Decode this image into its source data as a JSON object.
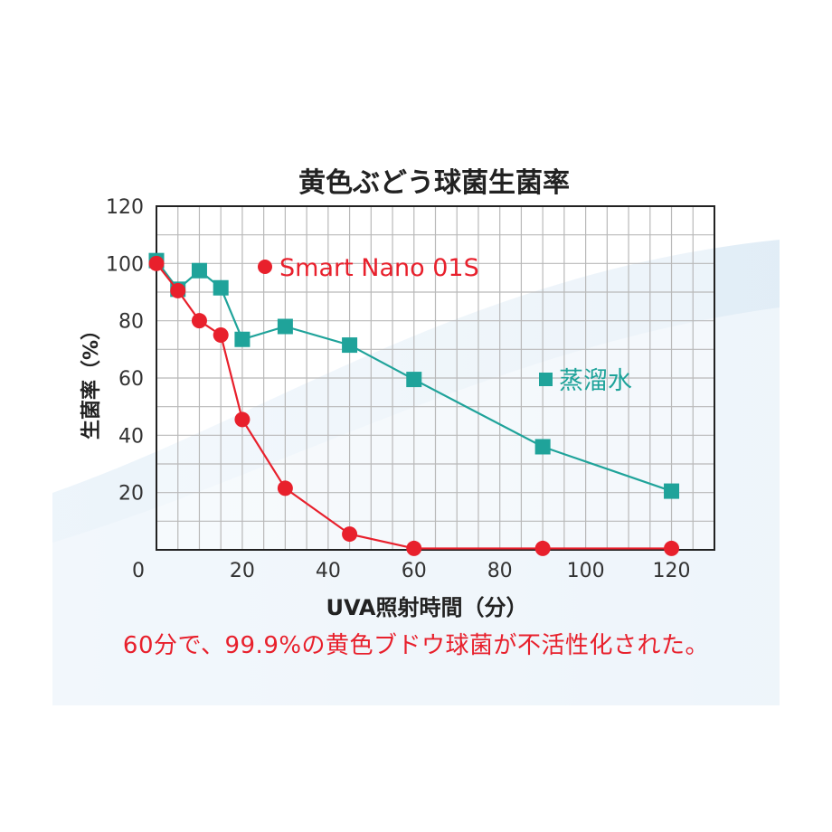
{
  "colors": {
    "red": "#e8202c",
    "teal": "#1fa39a",
    "grid": "#b9b9b9",
    "axis": "#222222",
    "text": "#333333"
  },
  "caption": "60分で、99.9%の黄色ブドウ球菌が不活性化された。",
  "chart_data": {
    "type": "line",
    "title": "黄色ぶどう球菌生菌率",
    "xlabel": "UVA照射時間（分）",
    "ylabel": "生菌率（%）",
    "xlim": [
      0,
      130
    ],
    "ylim": [
      0,
      120
    ],
    "x_ticks": [
      0,
      20,
      40,
      60,
      80,
      100,
      120
    ],
    "y_ticks": [
      20,
      40,
      60,
      80,
      100,
      120
    ],
    "grid": true,
    "legend_placement": "inline labels",
    "series": [
      {
        "name": "Smart Nano 01S",
        "color": "#e8202c",
        "marker": "circle",
        "points": [
          [
            0,
            100
          ],
          [
            5,
            90.5
          ],
          [
            10,
            80
          ],
          [
            15,
            75
          ],
          [
            20,
            45.5
          ],
          [
            30,
            21.5
          ],
          [
            45,
            5.5
          ],
          [
            60,
            0.5
          ],
          [
            90,
            0.5
          ],
          [
            120,
            0.5
          ]
        ]
      },
      {
        "name": "蒸溜水",
        "color": "#1fa39a",
        "marker": "square",
        "points": [
          [
            0,
            101
          ],
          [
            5,
            91
          ],
          [
            10,
            97.5
          ],
          [
            15,
            91.5
          ],
          [
            20,
            73.5
          ],
          [
            30,
            78
          ],
          [
            45,
            71.5
          ],
          [
            60,
            59.5
          ],
          [
            90,
            36
          ],
          [
            120,
            20.5
          ]
        ]
      }
    ]
  }
}
